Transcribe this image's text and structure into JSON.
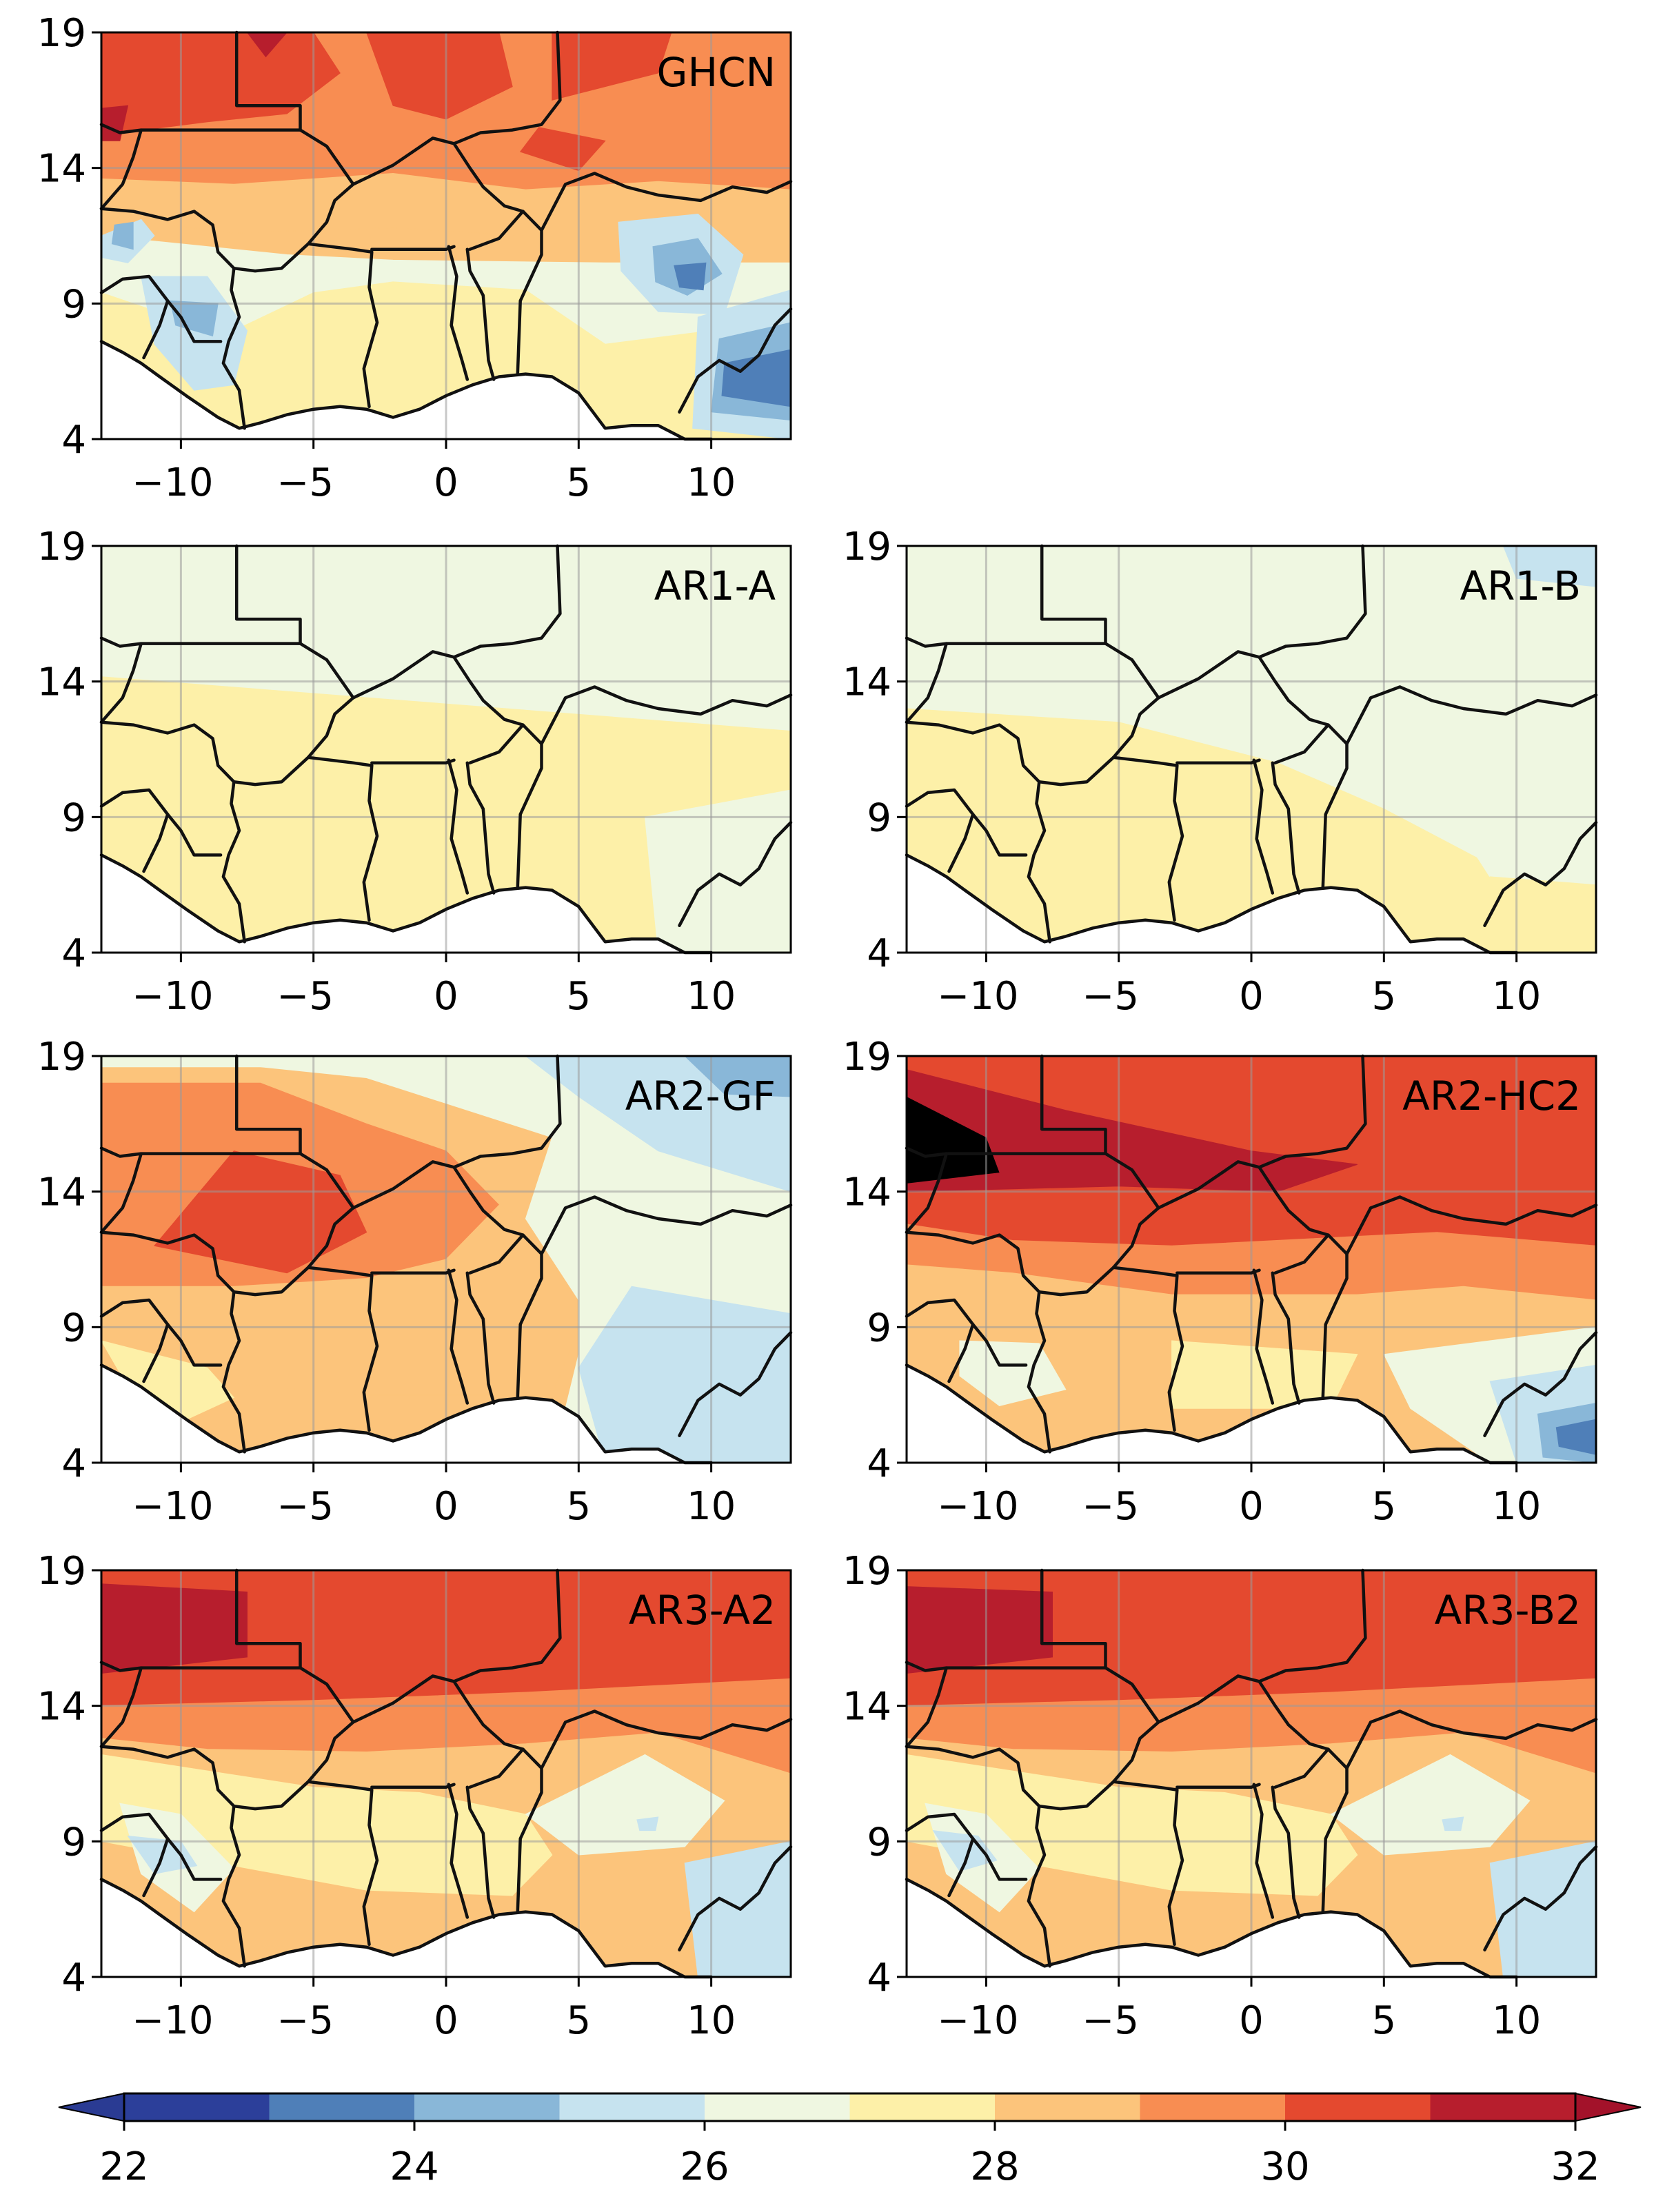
{
  "figure": {
    "description_type": "map-panel-grid",
    "lon_ticks": [
      "−10",
      "−5",
      "0",
      "5",
      "10"
    ],
    "lon_values": [
      -10,
      -5,
      0,
      5,
      10
    ],
    "lat_ticks": [
      "4",
      "9",
      "14",
      "19"
    ],
    "lat_values": [
      4,
      9,
      14,
      19
    ],
    "lon_range": [
      -13,
      13
    ],
    "lat_range": [
      4,
      19
    ]
  },
  "panels": [
    {
      "label": "GHCN",
      "style": "ghcn"
    },
    {
      "label": "AR1-A",
      "style": "ar1a"
    },
    {
      "label": "AR1-B",
      "style": "ar1b"
    },
    {
      "label": "AR2-GF",
      "style": "ar2gf"
    },
    {
      "label": "AR2-HC2",
      "style": "ar2hc2"
    },
    {
      "label": "AR3-A2",
      "style": "ar3a2"
    },
    {
      "label": "AR3-B2",
      "style": "ar3b2"
    }
  ],
  "colorbar": {
    "levels": [
      22,
      23,
      24,
      25,
      26,
      27,
      28,
      29,
      30,
      31,
      32
    ],
    "tick_labels": [
      "22",
      "24",
      "26",
      "28",
      "30",
      "32"
    ],
    "tick_values": [
      22,
      24,
      26,
      28,
      30,
      32
    ],
    "colors": [
      "#2c3f9a",
      "#4f7fb8",
      "#89b7d8",
      "#c6e3ef",
      "#eff7e1",
      "#fdf0a8",
      "#fcc47b",
      "#f88d52",
      "#e4492f",
      "#b71e2d"
    ],
    "under_color": "#2a3b93",
    "over_color": "#a3122a"
  }
}
